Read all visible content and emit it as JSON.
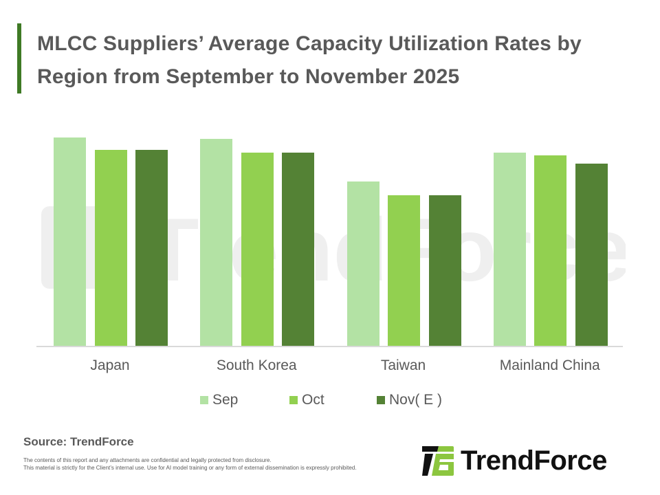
{
  "header": {
    "title": "MLCC Suppliers’ Average Capacity Utilization Rates by Region from September to November 2025",
    "accent_color": "#3f7a25"
  },
  "legend": {
    "items": [
      {
        "label": "Sep",
        "color": "#b3e2a4"
      },
      {
        "label": "Oct",
        "color": "#92d050"
      },
      {
        "label": "Nov( E )",
        "color": "#548235"
      }
    ]
  },
  "footer": {
    "source": "Source: TrendForce",
    "disclaimer_line1": "The contents of this report and any attachments are confidential and legally protected from disclosure.",
    "disclaimer_line2": "This material is strictly for the Client’s internal use. Use for AI model training or any form of external dissemination is expressly prohibited.",
    "logo_text": "TrendForce",
    "watermark_text": "TrendForce"
  },
  "chart_data": {
    "type": "bar",
    "title": "MLCC Suppliers’ Average Capacity Utilization Rates by Region from September to November 2025",
    "xlabel": "",
    "ylabel": "",
    "categories": [
      "Japan",
      "South Korea",
      "Taiwan",
      "Mainland China"
    ],
    "series": [
      {
        "name": "Sep",
        "color": "#b3e2a4",
        "values": [
          76,
          75.5,
          60,
          70.5
        ]
      },
      {
        "name": "Oct",
        "color": "#92d050",
        "values": [
          71.5,
          70.5,
          55,
          69.5
        ]
      },
      {
        "name": "Nov( E )",
        "color": "#548235",
        "values": [
          71.5,
          70.5,
          55,
          66.5
        ]
      }
    ],
    "ylim": [
      0,
      88.5
    ],
    "grid": false,
    "y_axis_visible": false,
    "legend_position": "bottom",
    "note": "No y-axis or data labels shown; values estimated from relative bar heights (approx. %)"
  }
}
